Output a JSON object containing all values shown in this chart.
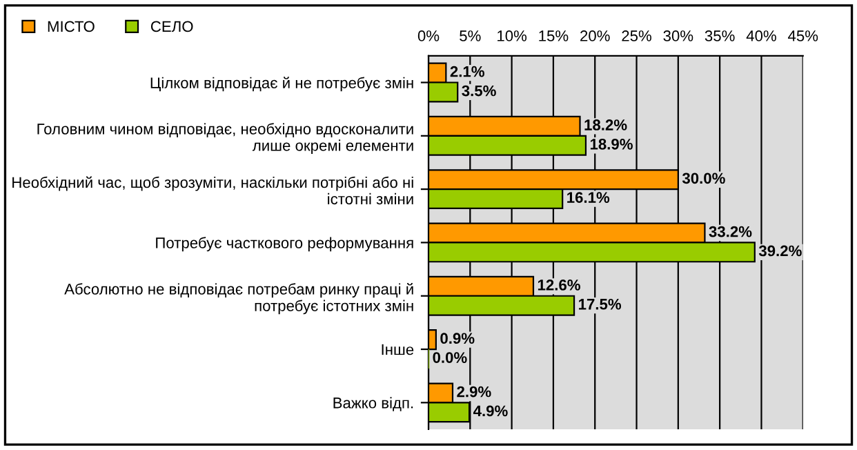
{
  "chart_data": {
    "type": "bar",
    "orientation": "horizontal",
    "categories": [
      "Цілком відповідає й не потребує змін",
      "Головним чином відповідає, необхідно вдосконалити\nлише окремі елементи",
      "Необхідний час, щоб зрозуміти, наскільки потрібні або ні\nістотні зміни",
      "Потребує часткового реформування",
      "Абсолютно не відповідає потребам ринку праці й\nпотребує істотних змін",
      "Інше",
      "Важко відп."
    ],
    "series": [
      {
        "name": "МІСТО",
        "color": "#ff9900",
        "values": [
          2.1,
          18.2,
          30.0,
          33.2,
          12.6,
          0.9,
          2.9
        ],
        "value_labels": [
          "2.1%",
          "18.2%",
          "30.0%",
          "33.2%",
          "12.6%",
          "0.9%",
          "2.9%"
        ]
      },
      {
        "name": "СЕЛО",
        "color": "#99cc00",
        "values": [
          3.5,
          18.9,
          16.1,
          39.2,
          17.5,
          0.0,
          4.9
        ],
        "value_labels": [
          "3.5%",
          "18.9%",
          "16.1%",
          "39.2%",
          "17.5%",
          "0.0%",
          "4.9%"
        ]
      }
    ],
    "xlim": [
      0,
      45
    ],
    "xticks": [
      {
        "value": 0,
        "label": "0%"
      },
      {
        "value": 5,
        "label": "5%"
      },
      {
        "value": 10,
        "label": "10%"
      },
      {
        "value": 15,
        "label": "15%"
      },
      {
        "value": 20,
        "label": "20%"
      },
      {
        "value": 25,
        "label": "25%"
      },
      {
        "value": 30,
        "label": "30%"
      },
      {
        "value": 35,
        "label": "35%"
      },
      {
        "value": 40,
        "label": "40%"
      },
      {
        "value": 45,
        "label": "45%"
      }
    ],
    "grid": "x",
    "legend": "top left"
  }
}
